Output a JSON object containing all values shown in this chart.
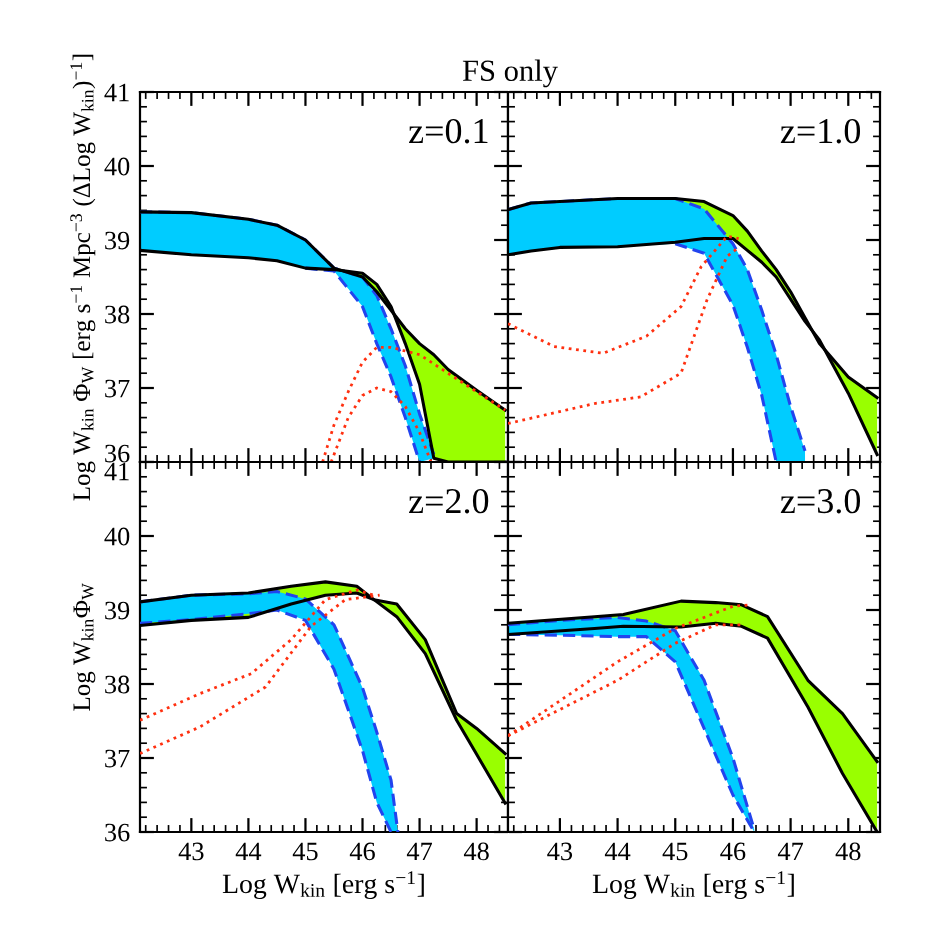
{
  "chart_data": [
    {
      "type": "line",
      "title": "FS only",
      "ylabel": "Log W$_{kin}$ Φ$_{W}$ [erg s$^{−1}$ Mpc$^{−3}$ (ΔLog W$_{kin}$)$^{−1}$]",
      "annotations": [
        "z=0.1"
      ],
      "xlim": [
        42.1,
        48.55
      ],
      "ylim": [
        36,
        41
      ],
      "xticks": [
        43,
        44,
        45,
        46,
        47,
        48
      ],
      "yticks": [
        36,
        37,
        38,
        39,
        40,
        41
      ],
      "tick_labels": "y",
      "series": [
        {
          "type": "area",
          "color": "#99ff00",
          "line_style": "solid",
          "x": [
            42.1,
            43,
            44,
            44.5,
            45,
            45.5,
            46,
            46.25,
            46.5,
            46.75,
            47,
            47.25,
            47.5,
            48,
            48.5
          ],
          "values": [
            39.38,
            39.37,
            39.28,
            39.2,
            39.0,
            38.62,
            38.5,
            38.3,
            38.05,
            37.8,
            37.6,
            37.45,
            37.25,
            36.97,
            36.7
          ]
        },
        {
          "type": "area",
          "color": "#00ccff",
          "line_style": "dashed",
          "x": [
            42.1,
            43,
            44,
            44.5,
            45,
            45.5,
            46,
            46.25,
            46.5,
            46.75,
            47,
            47.25
          ],
          "values": [
            39.38,
            39.37,
            39.28,
            39.2,
            39.0,
            38.62,
            38.5,
            38.25,
            37.8,
            37.3,
            36.65,
            36.1
          ]
        },
        {
          "color": "#000000",
          "line_style": "solid",
          "x": [
            42.1,
            43,
            44,
            44.5,
            45,
            45.5,
            46,
            46.25,
            46.5,
            46.75,
            47,
            47.25,
            47.5,
            48,
            48.5
          ],
          "values": [
            38.86,
            38.8,
            38.76,
            38.72,
            38.62,
            38.6,
            38.55,
            38.4,
            38.1,
            37.6,
            37.05,
            36.05,
            36,
            36,
            36
          ]
        },
        {
          "color": "#2244ee",
          "line_style": "dashed",
          "x": [
            45,
            45.5,
            46,
            46.25,
            46.5,
            46.75,
            47
          ],
          "values": [
            38.62,
            38.58,
            38.1,
            37.6,
            37.15,
            36.6,
            36.0
          ]
        },
        {
          "color": "#ff3010",
          "line_style": "dotted",
          "x": [
            45.3,
            45.5,
            45.75,
            46,
            46.25,
            46.5,
            47,
            47.5,
            48,
            48.5
          ],
          "values": [
            36,
            36.5,
            36.95,
            37.35,
            37.55,
            37.55,
            37.45,
            37.2,
            36.95,
            36.7
          ]
        },
        {
          "color": "#ff3010",
          "line_style": "dotted",
          "x": [
            45.45,
            45.75,
            46,
            46.25,
            46.5,
            46.75,
            47,
            47.2
          ],
          "values": [
            36,
            36.6,
            36.9,
            37.0,
            36.95,
            36.75,
            36.4,
            36.0
          ]
        }
      ]
    },
    {
      "type": "line",
      "annotations": [
        "z=1.0"
      ],
      "xlim": [
        42.1,
        48.55
      ],
      "ylim": [
        36,
        41
      ],
      "xticks": [
        43,
        44,
        45,
        46,
        47,
        48
      ],
      "yticks": [
        36,
        37,
        38,
        39,
        40,
        41
      ],
      "tick_labels": false,
      "series": [
        {
          "type": "area",
          "color": "#99ff00",
          "line_style": "solid",
          "x": [
            42.1,
            42.5,
            43,
            44,
            45,
            45.5,
            46,
            46.25,
            46.5,
            46.75,
            47,
            47.25,
            47.5,
            48,
            48.5
          ],
          "values": [
            39.41,
            39.5,
            39.52,
            39.56,
            39.56,
            39.52,
            39.33,
            39.12,
            38.85,
            38.6,
            38.3,
            37.95,
            37.6,
            37.15,
            36.87
          ]
        },
        {
          "type": "area",
          "color": "#00ccff",
          "line_style": "dashed",
          "x": [
            42.1,
            42.5,
            43,
            44,
            45,
            45.5,
            46,
            46.25,
            46.5,
            46.75,
            47,
            47.25
          ],
          "values": [
            39.41,
            39.5,
            39.52,
            39.56,
            39.56,
            39.42,
            38.95,
            38.6,
            38.05,
            37.45,
            36.75,
            36.15
          ]
        },
        {
          "color": "#000000",
          "line_style": "solid",
          "x": [
            42.1,
            42.5,
            43,
            44,
            45,
            45.5,
            46,
            46.25,
            46.5,
            46.75,
            47,
            47.25,
            47.5,
            48,
            48.5
          ],
          "values": [
            38.8,
            38.85,
            38.9,
            38.91,
            38.97,
            39.02,
            39.02,
            38.86,
            38.7,
            38.5,
            38.2,
            37.9,
            37.65,
            36.93,
            36.1
          ]
        },
        {
          "color": "#2244ee",
          "line_style": "dashed",
          "x": [
            45,
            45.5,
            46,
            46.25,
            46.5,
            46.75
          ],
          "values": [
            38.95,
            38.82,
            38.12,
            37.55,
            36.9,
            36.0
          ]
        },
        {
          "color": "#ff3010",
          "line_style": "dotted",
          "x": [
            42.1,
            42.9,
            43.75,
            44.5,
            45.1,
            45.45,
            45.9,
            46.1
          ],
          "values": [
            37.87,
            37.56,
            37.47,
            37.7,
            38.1,
            38.64,
            39.05,
            39.02
          ]
        },
        {
          "color": "#ff3010",
          "line_style": "dotted",
          "x": [
            42.1,
            43.6,
            44.4,
            45.1,
            45.55,
            45.9,
            46.1
          ],
          "values": [
            36.52,
            36.79,
            36.88,
            37.2,
            38.19,
            38.78,
            38.9
          ]
        }
      ]
    },
    {
      "type": "line",
      "xlabel": "Log W$_{kin}$ [erg s$^{−1}$]",
      "ylabel": "Log W$_{kin}$Φ$_{W}$",
      "annotations": [
        "z=2.0"
      ],
      "xlim": [
        42.1,
        48.55
      ],
      "ylim": [
        36,
        41
      ],
      "xticks": [
        43,
        44,
        45,
        46,
        47,
        48
      ],
      "yticks": [
        36,
        37,
        38,
        39,
        40,
        41
      ],
      "series": [
        {
          "type": "area",
          "color": "#99ff00",
          "line_style": "solid",
          "x": [
            42.1,
            43,
            44,
            44.75,
            45.35,
            45.9,
            46.2,
            46.6,
            47.1,
            47.65,
            48,
            48.5
          ],
          "values": [
            39.11,
            39.2,
            39.23,
            39.32,
            39.38,
            39.32,
            39.14,
            39.08,
            38.6,
            37.6,
            37.4,
            37.06
          ]
        },
        {
          "type": "area",
          "color": "#00ccff",
          "line_style": "dashed",
          "x": [
            42.1,
            43,
            44,
            44.5,
            45,
            45.5,
            46,
            46.25,
            46.5,
            46.62
          ],
          "values": [
            39.11,
            39.2,
            39.22,
            39.25,
            39.15,
            38.8,
            37.95,
            37.35,
            36.7,
            36.0
          ]
        },
        {
          "color": "#000000",
          "line_style": "solid",
          "x": [
            42.1,
            43,
            44,
            44.75,
            45.35,
            45.9,
            46.2,
            46.6,
            47.1,
            47.65,
            48,
            48.5
          ],
          "values": [
            38.79,
            38.86,
            38.9,
            39.08,
            39.2,
            39.23,
            39.14,
            38.91,
            38.41,
            37.51,
            37.05,
            36.39
          ]
        },
        {
          "color": "#2244ee",
          "line_style": "dashed",
          "x": [
            42.1,
            43,
            44,
            44.5,
            45,
            45.5,
            46,
            46.25,
            46.5,
            46.62
          ],
          "values": [
            38.82,
            38.87,
            38.95,
            39.0,
            38.86,
            38.2,
            37.1,
            36.4,
            36.0,
            36.0
          ]
        },
        {
          "color": "#ff3010",
          "line_style": "dotted",
          "x": [
            42.1,
            43.15,
            44.05,
            44.75,
            45.35,
            45.9,
            46.2
          ],
          "values": [
            37.51,
            37.87,
            38.14,
            38.6,
            39.14,
            39.27,
            39.2
          ]
        },
        {
          "color": "#ff3010",
          "line_style": "dotted",
          "x": [
            42.1,
            43.15,
            44.3,
            45.1,
            45.7,
            46.3
          ],
          "values": [
            37.06,
            37.42,
            37.96,
            38.78,
            39.14,
            39.2
          ]
        }
      ]
    },
    {
      "type": "line",
      "xlabel": "Log W$_{kin}$ [erg s$^{−1}$]",
      "annotations": [
        "z=3.0"
      ],
      "xlim": [
        42.1,
        48.55
      ],
      "ylim": [
        36,
        41
      ],
      "xticks": [
        43,
        44,
        45,
        46,
        47,
        48
      ],
      "yticks": [
        36,
        37,
        38,
        39,
        40,
        41
      ],
      "tick_labels": "x",
      "series": [
        {
          "type": "area",
          "color": "#99ff00",
          "line_style": "solid",
          "x": [
            42.1,
            43.6,
            44.1,
            45.1,
            45.7,
            46.15,
            46.6,
            47.3,
            47.9,
            48.5
          ],
          "values": [
            38.82,
            38.91,
            38.94,
            39.12,
            39.1,
            39.07,
            38.91,
            38.05,
            37.6,
            36.95
          ]
        },
        {
          "type": "area",
          "color": "#00ccff",
          "line_style": "dashed",
          "x": [
            42.1,
            43,
            44,
            44.5,
            45,
            45.5,
            46,
            46.37
          ],
          "values": [
            38.8,
            38.86,
            38.9,
            38.85,
            38.72,
            38.05,
            37.0,
            36.03
          ]
        },
        {
          "color": "#000000",
          "line_style": "solid",
          "x": [
            42.1,
            43.6,
            44.1,
            45.1,
            45.7,
            46.15,
            46.6,
            47.3,
            47.9,
            48.5
          ],
          "values": [
            38.67,
            38.75,
            38.78,
            38.77,
            38.82,
            38.78,
            38.62,
            37.69,
            36.79,
            36.0
          ]
        },
        {
          "color": "#2244ee",
          "line_style": "dashed",
          "x": [
            42.1,
            43,
            44,
            44.5,
            45,
            45.5,
            46,
            46.37
          ],
          "values": [
            38.67,
            38.66,
            38.64,
            38.64,
            38.3,
            37.4,
            36.5,
            36.0
          ]
        },
        {
          "color": "#ff3010",
          "line_style": "dotted",
          "x": [
            42.1,
            44,
            45,
            45.7,
            46.2
          ],
          "values": [
            37.3,
            38.05,
            38.55,
            38.8,
            38.8
          ]
        },
        {
          "color": "#ff3010",
          "line_style": "dotted",
          "x": [
            42.1,
            44,
            45,
            46,
            46.3
          ],
          "values": [
            37.3,
            38.3,
            38.75,
            39.05,
            39.07
          ]
        }
      ]
    }
  ]
}
